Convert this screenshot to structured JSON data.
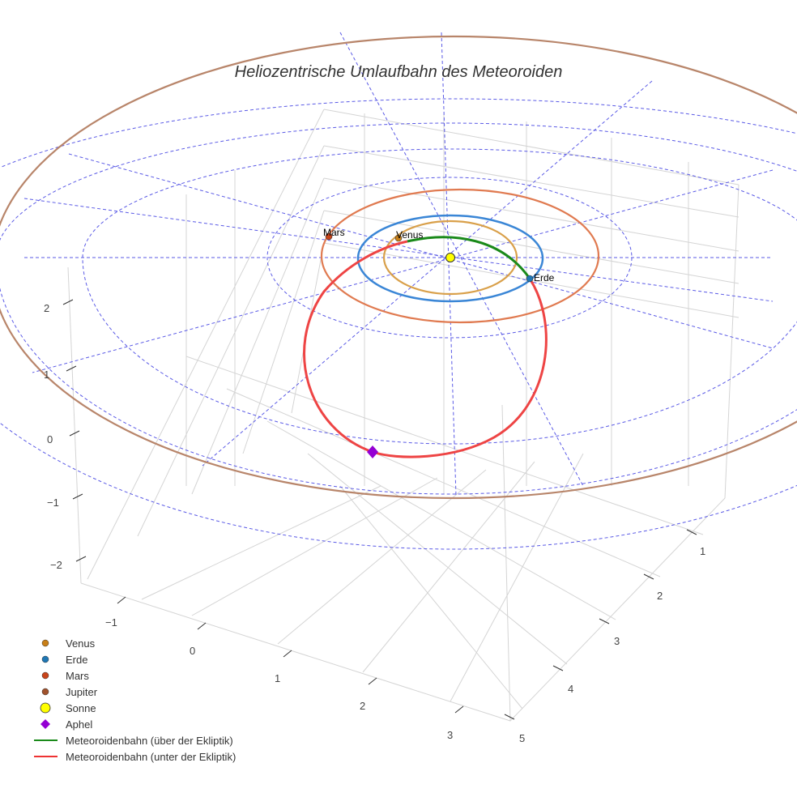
{
  "chart_data": {
    "type": "scatter3d",
    "title": "Heliozentrische Umlaufbahn des Meteoroiden",
    "axes": {
      "x_ticks": [
        "−1",
        "0",
        "1",
        "2",
        "3"
      ],
      "y_ticks": [
        "1",
        "2",
        "3",
        "4",
        "5"
      ],
      "z_ticks": [
        "2",
        "1",
        "0",
        "−1",
        "−2"
      ]
    },
    "points": [
      {
        "name": "Venus",
        "label": "Venus",
        "color": "#c87f17"
      },
      {
        "name": "Erde",
        "label": "Erde",
        "color": "#1f77b4"
      },
      {
        "name": "Mars",
        "label": "Mars",
        "color": "#c8441a"
      },
      {
        "name": "Jupiter",
        "color": "#a0522d"
      },
      {
        "name": "Sonne",
        "color": "#ffff00"
      },
      {
        "name": "Aphel",
        "color": "#9400d3"
      }
    ],
    "orbits": [
      {
        "name": "Venus orbit",
        "color": "#d9a04a"
      },
      {
        "name": "Erde orbit",
        "color": "#3a86d6"
      },
      {
        "name": "Mars orbit",
        "color": "#e07a50"
      },
      {
        "name": "Jupiter orbit",
        "color": "#b8856a"
      }
    ],
    "lines": [
      {
        "name": "Meteoroidenbahn (über der Ekliptik)",
        "color": "#1a8a1a"
      },
      {
        "name": "Meteoroidenbahn (unter der Ekliptik)",
        "color": "#ee3333"
      }
    ],
    "legend": [
      "Venus",
      "Erde",
      "Mars",
      "Jupiter",
      "Sonne",
      "Aphel",
      "Meteoroidenbahn (über der Ekliptik)",
      "Meteoroidenbahn (unter der Ekliptik)"
    ],
    "legend_position": "bottom-left"
  }
}
